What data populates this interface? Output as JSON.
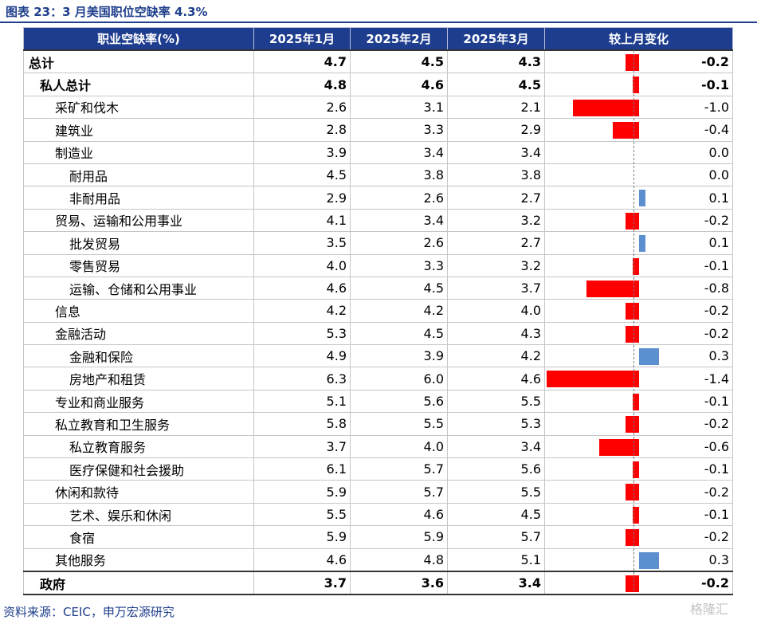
{
  "title": "图表 23：3 月美国职位空缺率 4.3%",
  "source": "资料来源：CEIC，申万宏源研究",
  "watermark": "格隆汇",
  "chart_data": {
    "type": "table",
    "headers": [
      "职业空缺率(%)",
      "2025年1月",
      "2025年2月",
      "2025年3月",
      "较上月变化"
    ],
    "rows": [
      {
        "name": "总计",
        "level": 0,
        "bold": true,
        "jan": "4.7",
        "feb": "4.5",
        "mar": "4.3",
        "change": -0.2,
        "change_label": "-0.2"
      },
      {
        "name": "私人总计",
        "level": 1,
        "bold": true,
        "jan": "4.8",
        "feb": "4.6",
        "mar": "4.5",
        "change": -0.1,
        "change_label": "-0.1"
      },
      {
        "name": "采矿和伐木",
        "level": 2,
        "bold": false,
        "jan": "2.6",
        "feb": "3.1",
        "mar": "2.1",
        "change": -1.0,
        "change_label": "-1.0"
      },
      {
        "name": "建筑业",
        "level": 2,
        "bold": false,
        "jan": "2.8",
        "feb": "3.3",
        "mar": "2.9",
        "change": -0.4,
        "change_label": "-0.4"
      },
      {
        "name": "制造业",
        "level": 2,
        "bold": false,
        "jan": "3.9",
        "feb": "3.4",
        "mar": "3.4",
        "change": 0.0,
        "change_label": "0.0"
      },
      {
        "name": "耐用品",
        "level": 3,
        "bold": false,
        "jan": "4.5",
        "feb": "3.8",
        "mar": "3.8",
        "change": 0.0,
        "change_label": "0.0"
      },
      {
        "name": "非耐用品",
        "level": 3,
        "bold": false,
        "jan": "2.9",
        "feb": "2.6",
        "mar": "2.7",
        "change": 0.1,
        "change_label": "0.1"
      },
      {
        "name": "贸易、运输和公用事业",
        "level": 2,
        "bold": false,
        "jan": "4.1",
        "feb": "3.4",
        "mar": "3.2",
        "change": -0.2,
        "change_label": "-0.2"
      },
      {
        "name": "批发贸易",
        "level": 3,
        "bold": false,
        "jan": "3.5",
        "feb": "2.6",
        "mar": "2.7",
        "change": 0.1,
        "change_label": "0.1"
      },
      {
        "name": "零售贸易",
        "level": 3,
        "bold": false,
        "jan": "4.0",
        "feb": "3.3",
        "mar": "3.2",
        "change": -0.1,
        "change_label": "-0.1"
      },
      {
        "name": "运输、仓储和公用事业",
        "level": 3,
        "bold": false,
        "jan": "4.6",
        "feb": "4.5",
        "mar": "3.7",
        "change": -0.8,
        "change_label": "-0.8"
      },
      {
        "name": "信息",
        "level": 2,
        "bold": false,
        "jan": "4.2",
        "feb": "4.2",
        "mar": "4.0",
        "change": -0.2,
        "change_label": "-0.2"
      },
      {
        "name": "金融活动",
        "level": 2,
        "bold": false,
        "jan": "5.3",
        "feb": "4.5",
        "mar": "4.3",
        "change": -0.2,
        "change_label": "-0.2"
      },
      {
        "name": "金融和保险",
        "level": 3,
        "bold": false,
        "jan": "4.9",
        "feb": "3.9",
        "mar": "4.2",
        "change": 0.3,
        "change_label": "0.3"
      },
      {
        "name": "房地产和租赁",
        "level": 3,
        "bold": false,
        "jan": "6.3",
        "feb": "6.0",
        "mar": "4.6",
        "change": -1.4,
        "change_label": "-1.4"
      },
      {
        "name": "专业和商业服务",
        "level": 2,
        "bold": false,
        "jan": "5.1",
        "feb": "5.6",
        "mar": "5.5",
        "change": -0.1,
        "change_label": "-0.1"
      },
      {
        "name": "私立教育和卫生服务",
        "level": 2,
        "bold": false,
        "jan": "5.8",
        "feb": "5.5",
        "mar": "5.3",
        "change": -0.2,
        "change_label": "-0.2"
      },
      {
        "name": "私立教育服务",
        "level": 3,
        "bold": false,
        "jan": "3.7",
        "feb": "4.0",
        "mar": "3.4",
        "change": -0.6,
        "change_label": "-0.6"
      },
      {
        "name": "医疗保健和社会援助",
        "level": 3,
        "bold": false,
        "jan": "6.1",
        "feb": "5.7",
        "mar": "5.6",
        "change": -0.1,
        "change_label": "-0.1"
      },
      {
        "name": "休闲和款待",
        "level": 2,
        "bold": false,
        "jan": "5.9",
        "feb": "5.7",
        "mar": "5.5",
        "change": -0.2,
        "change_label": "-0.2"
      },
      {
        "name": "艺术、娱乐和休闲",
        "level": 3,
        "bold": false,
        "jan": "5.5",
        "feb": "4.6",
        "mar": "4.5",
        "change": -0.1,
        "change_label": "-0.1"
      },
      {
        "name": "食宿",
        "level": 3,
        "bold": false,
        "jan": "5.9",
        "feb": "5.9",
        "mar": "5.7",
        "change": -0.2,
        "change_label": "-0.2"
      },
      {
        "name": "其他服务",
        "level": 2,
        "bold": false,
        "jan": "4.6",
        "feb": "4.8",
        "mar": "5.1",
        "change": 0.3,
        "change_label": "0.3"
      },
      {
        "name": "政府",
        "level": 1,
        "bold": true,
        "jan": "3.7",
        "feb": "3.6",
        "mar": "3.4",
        "change": -0.2,
        "change_label": "-0.2"
      }
    ],
    "colors": {
      "negative": "#ff0000",
      "positive": "#5b8fd0",
      "header_bg": "#1e3d8f",
      "title": "#1f3f8c"
    }
  }
}
